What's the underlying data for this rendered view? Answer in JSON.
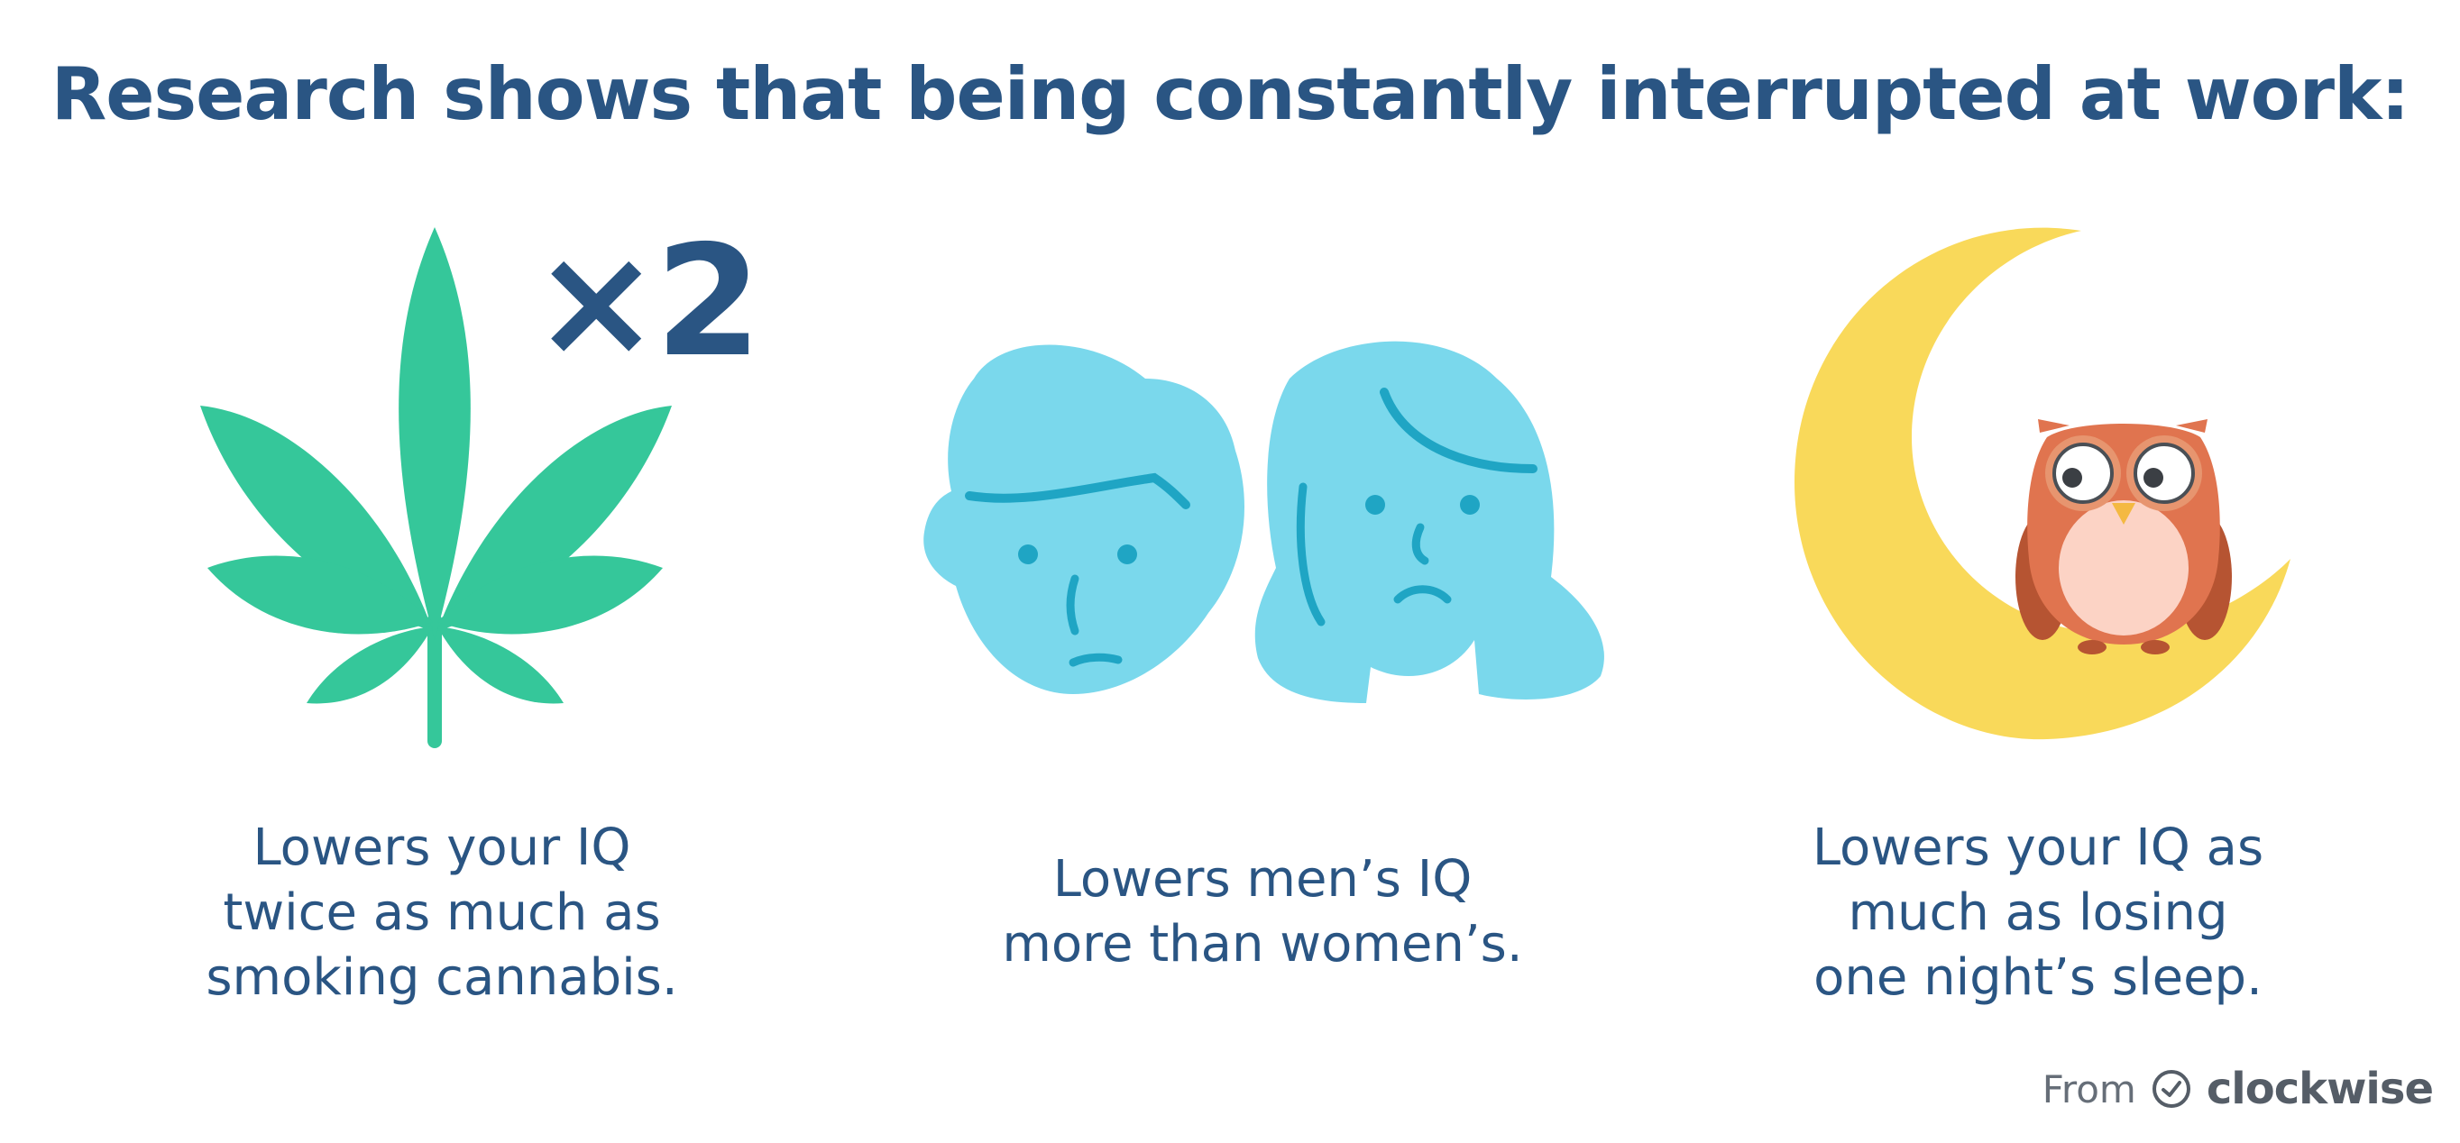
{
  "title": "Research shows that being constantly interrupted at work:",
  "panels": [
    {
      "id": "cannabis",
      "icon": "cannabis-leaf-icon",
      "badge": "×2",
      "caption_lines": [
        "Lowers your IQ",
        "twice as much as",
        "smoking cannabis."
      ]
    },
    {
      "id": "gender",
      "icon": "man-and-woman-faces-icon",
      "caption_lines": [
        "Lowers men’s IQ",
        "more than women’s."
      ]
    },
    {
      "id": "sleep",
      "icon": "moon-owl-icon",
      "caption_lines": [
        "Lowers your IQ as",
        "much as losing",
        "one night’s sleep."
      ]
    }
  ],
  "footer": {
    "from_label": "From",
    "brand_icon": "check-circle-icon",
    "brand_name": "clockwise"
  },
  "colors": {
    "title": "#2a5583",
    "leaf": "#35c79a",
    "face": "#7ad8ec",
    "face_lines": "#1fa5c4",
    "moon": "#f9d95a",
    "owl_body": "#e0744f",
    "owl_belly": "#fcd3c5",
    "footer": "#555d67"
  }
}
